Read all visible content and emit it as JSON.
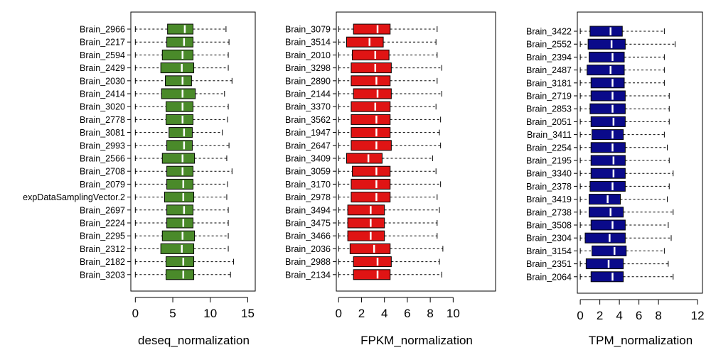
{
  "chart_data": [
    {
      "type": "boxplot",
      "orientation": "horizontal",
      "xlabel": "deseq_normalization",
      "xlim": [
        -0.6,
        16
      ],
      "xticks": [
        0,
        5,
        10,
        15
      ],
      "box_color": "#4a8a2a",
      "categories": [
        "Brain_2966",
        "Brain_2217",
        "Brain_2594",
        "Brain_2429",
        "Brain_2030",
        "Brain_2414",
        "Brain_3020",
        "Brain_2778",
        "Brain_3081",
        "Brain_2993",
        "Brain_2566",
        "Brain_2708",
        "Brain_2079",
        "expDataSamplingVector.2",
        "Brain_2697",
        "Brain_2224",
        "Brain_2295",
        "Brain_2312",
        "Brain_2182",
        "Brain_3203"
      ],
      "boxes": [
        {
          "whisker_low": 0,
          "q1": 4.3,
          "median": 6.6,
          "q3": 7.7,
          "whisker_high": 12.1
        },
        {
          "whisker_low": 0,
          "q1": 4.2,
          "median": 6.5,
          "q3": 7.7,
          "whisker_high": 12.5
        },
        {
          "whisker_low": 0,
          "q1": 3.6,
          "median": 6.3,
          "q3": 7.7,
          "whisker_high": 12.4
        },
        {
          "whisker_low": 0,
          "q1": 3.4,
          "median": 6.2,
          "q3": 7.8,
          "whisker_high": 12.4
        },
        {
          "whisker_low": 0,
          "q1": 4.0,
          "median": 6.3,
          "q3": 7.5,
          "whisker_high": 12.9
        },
        {
          "whisker_low": 0,
          "q1": 3.5,
          "median": 6.3,
          "q3": 8.0,
          "whisker_high": 11.9
        },
        {
          "whisker_low": 0,
          "q1": 4.1,
          "median": 6.3,
          "q3": 7.7,
          "whisker_high": 12.4
        },
        {
          "whisker_low": 0,
          "q1": 4.1,
          "median": 6.3,
          "q3": 7.7,
          "whisker_high": 12.3
        },
        {
          "whisker_low": 0,
          "q1": 4.5,
          "median": 6.5,
          "q3": 7.6,
          "whisker_high": 11.6
        },
        {
          "whisker_low": 0,
          "q1": 4.2,
          "median": 6.5,
          "q3": 7.6,
          "whisker_high": 12.5
        },
        {
          "whisker_low": 0,
          "q1": 3.6,
          "median": 6.3,
          "q3": 7.9,
          "whisker_high": 12.2
        },
        {
          "whisker_low": 0,
          "q1": 4.2,
          "median": 6.3,
          "q3": 7.7,
          "whisker_high": 12.9
        },
        {
          "whisker_low": 0,
          "q1": 4.2,
          "median": 6.4,
          "q3": 7.7,
          "whisker_high": 12.3
        },
        {
          "whisker_low": 0,
          "q1": 3.9,
          "median": 6.4,
          "q3": 7.8,
          "whisker_high": 12.2
        },
        {
          "whisker_low": 0,
          "q1": 4.2,
          "median": 6.5,
          "q3": 7.7,
          "whisker_high": 12.4
        },
        {
          "whisker_low": 0,
          "q1": 4.2,
          "median": 6.4,
          "q3": 7.7,
          "whisker_high": 12.4
        },
        {
          "whisker_low": 0,
          "q1": 3.6,
          "median": 6.3,
          "q3": 7.9,
          "whisker_high": 12.4
        },
        {
          "whisker_low": 0,
          "q1": 3.4,
          "median": 6.2,
          "q3": 7.8,
          "whisker_high": 12.4
        },
        {
          "whisker_low": 0,
          "q1": 4.1,
          "median": 6.4,
          "q3": 7.8,
          "whisker_high": 13.1
        },
        {
          "whisker_low": 0,
          "q1": 4.1,
          "median": 6.4,
          "q3": 7.8,
          "whisker_high": 12.7
        }
      ]
    },
    {
      "type": "boxplot",
      "orientation": "horizontal",
      "xlabel": "FPKM_normalization",
      "xlim": [
        -0.2,
        13.7
      ],
      "xticks": [
        0,
        2,
        4,
        6,
        8,
        10
      ],
      "box_color": "#e01414",
      "categories": [
        "Brain_3079",
        "Brain_3514",
        "Brain_2010",
        "Brain_3298",
        "Brain_2890",
        "Brain_2144",
        "Brain_3370",
        "Brain_3562",
        "Brain_1947",
        "Brain_2647",
        "Brain_3409",
        "Brain_3059",
        "Brain_3170",
        "Brain_2978",
        "Brain_3494",
        "Brain_3475",
        "Brain_3466",
        "Brain_2036",
        "Brain_2988",
        "Brain_2134"
      ],
      "boxes": [
        {
          "whisker_low": 0,
          "q1": 1.3,
          "median": 3.4,
          "q3": 4.5,
          "whisker_high": 8.6
        },
        {
          "whisker_low": 0,
          "q1": 0.7,
          "median": 2.7,
          "q3": 3.9,
          "whisker_high": 8.5
        },
        {
          "whisker_low": 0,
          "q1": 1.2,
          "median": 3.2,
          "q3": 4.4,
          "whisker_high": 8.6
        },
        {
          "whisker_low": 0,
          "q1": 1.1,
          "median": 3.2,
          "q3": 4.6,
          "whisker_high": 9.0
        },
        {
          "whisker_low": 0,
          "q1": 1.1,
          "median": 3.3,
          "q3": 4.5,
          "whisker_high": 8.6
        },
        {
          "whisker_low": 0,
          "q1": 1.3,
          "median": 3.4,
          "q3": 4.6,
          "whisker_high": 9.0
        },
        {
          "whisker_low": 0,
          "q1": 1.1,
          "median": 3.2,
          "q3": 4.5,
          "whisker_high": 8.5
        },
        {
          "whisker_low": 0,
          "q1": 1.1,
          "median": 3.3,
          "q3": 4.5,
          "whisker_high": 8.9
        },
        {
          "whisker_low": 0,
          "q1": 1.1,
          "median": 3.3,
          "q3": 4.5,
          "whisker_high": 8.8
        },
        {
          "whisker_low": 0,
          "q1": 1.1,
          "median": 3.3,
          "q3": 4.6,
          "whisker_high": 8.9
        },
        {
          "whisker_low": 0,
          "q1": 0.7,
          "median": 2.6,
          "q3": 3.8,
          "whisker_high": 8.2
        },
        {
          "whisker_low": 0,
          "q1": 1.2,
          "median": 3.3,
          "q3": 4.5,
          "whisker_high": 8.5
        },
        {
          "whisker_low": 0,
          "q1": 1.1,
          "median": 3.3,
          "q3": 4.5,
          "whisker_high": 8.9
        },
        {
          "whisker_low": 0,
          "q1": 1.1,
          "median": 3.3,
          "q3": 4.5,
          "whisker_high": 8.6
        },
        {
          "whisker_low": 0,
          "q1": 0.8,
          "median": 2.8,
          "q3": 4.0,
          "whisker_high": 8.8
        },
        {
          "whisker_low": 0,
          "q1": 0.8,
          "median": 2.8,
          "q3": 4.0,
          "whisker_high": 8.6
        },
        {
          "whisker_low": 0,
          "q1": 0.8,
          "median": 2.8,
          "q3": 4.0,
          "whisker_high": 8.6
        },
        {
          "whisker_low": 0,
          "q1": 1.0,
          "median": 3.1,
          "q3": 4.5,
          "whisker_high": 9.1
        },
        {
          "whisker_low": 0,
          "q1": 1.3,
          "median": 3.4,
          "q3": 4.6,
          "whisker_high": 8.8
        },
        {
          "whisker_low": 0,
          "q1": 1.3,
          "median": 3.4,
          "q3": 4.5,
          "whisker_high": 9.0
        }
      ]
    },
    {
      "type": "boxplot",
      "orientation": "horizontal",
      "xlabel": "TPM_normalization",
      "xlim": [
        -0.3,
        12.5
      ],
      "xticks": [
        0,
        2,
        4,
        6,
        8,
        12
      ],
      "box_color": "#0a0a8a",
      "categories": [
        "Brain_3422",
        "Brain_2552",
        "Brain_2394",
        "Brain_2487",
        "Brain_3181",
        "Brain_2719",
        "Brain_2853",
        "Brain_2051",
        "Brain_3411",
        "Brain_2254",
        "Brain_2195",
        "Brain_3340",
        "Brain_2378",
        "Brain_3419",
        "Brain_2738",
        "Brain_3508",
        "Brain_2304",
        "Brain_3154",
        "Brain_2351",
        "Brain_2064"
      ],
      "boxes": [
        {
          "whisker_low": 0,
          "q1": 1.0,
          "median": 3.1,
          "q3": 4.3,
          "whisker_high": 8.6
        },
        {
          "whisker_low": 0,
          "q1": 0.8,
          "median": 3.2,
          "q3": 4.6,
          "whisker_high": 9.7
        },
        {
          "whisker_low": 0,
          "q1": 0.9,
          "median": 3.3,
          "q3": 4.5,
          "whisker_high": 8.6
        },
        {
          "whisker_low": 0,
          "q1": 0.7,
          "median": 3.1,
          "q3": 4.5,
          "whisker_high": 8.6
        },
        {
          "whisker_low": 0,
          "q1": 1.1,
          "median": 3.3,
          "q3": 4.5,
          "whisker_high": 8.6
        },
        {
          "whisker_low": 0,
          "q1": 1.1,
          "median": 3.3,
          "q3": 4.6,
          "whisker_high": 9.1
        },
        {
          "whisker_low": 0,
          "q1": 1.0,
          "median": 3.3,
          "q3": 4.6,
          "whisker_high": 9.1
        },
        {
          "whisker_low": 0,
          "q1": 1.1,
          "median": 3.4,
          "q3": 4.6,
          "whisker_high": 9.1
        },
        {
          "whisker_low": 0,
          "q1": 1.2,
          "median": 3.3,
          "q3": 4.4,
          "whisker_high": 8.6
        },
        {
          "whisker_low": 0,
          "q1": 1.1,
          "median": 3.3,
          "q3": 4.6,
          "whisker_high": 8.9
        },
        {
          "whisker_low": 0,
          "q1": 1.1,
          "median": 3.4,
          "q3": 4.6,
          "whisker_high": 9.1
        },
        {
          "whisker_low": 0,
          "q1": 1.1,
          "median": 3.4,
          "q3": 4.6,
          "whisker_high": 9.5
        },
        {
          "whisker_low": 0,
          "q1": 1.0,
          "median": 3.3,
          "q3": 4.6,
          "whisker_high": 9.1
        },
        {
          "whisker_low": 0,
          "q1": 0.9,
          "median": 2.8,
          "q3": 4.1,
          "whisker_high": 8.9
        },
        {
          "whisker_low": 0,
          "q1": 0.9,
          "median": 3.1,
          "q3": 4.4,
          "whisker_high": 9.5
        },
        {
          "whisker_low": 0,
          "q1": 1.1,
          "median": 3.3,
          "q3": 4.6,
          "whisker_high": 9.0
        },
        {
          "whisker_low": 0,
          "q1": 0.5,
          "median": 3.0,
          "q3": 4.6,
          "whisker_high": 9.3
        },
        {
          "whisker_low": 0,
          "q1": 1.2,
          "median": 3.5,
          "q3": 4.7,
          "whisker_high": 8.6
        },
        {
          "whisker_low": 0,
          "q1": 0.6,
          "median": 2.9,
          "q3": 4.4,
          "whisker_high": 9.0
        },
        {
          "whisker_low": 0,
          "q1": 1.1,
          "median": 3.3,
          "q3": 4.4,
          "whisker_high": 9.5
        }
      ]
    }
  ]
}
